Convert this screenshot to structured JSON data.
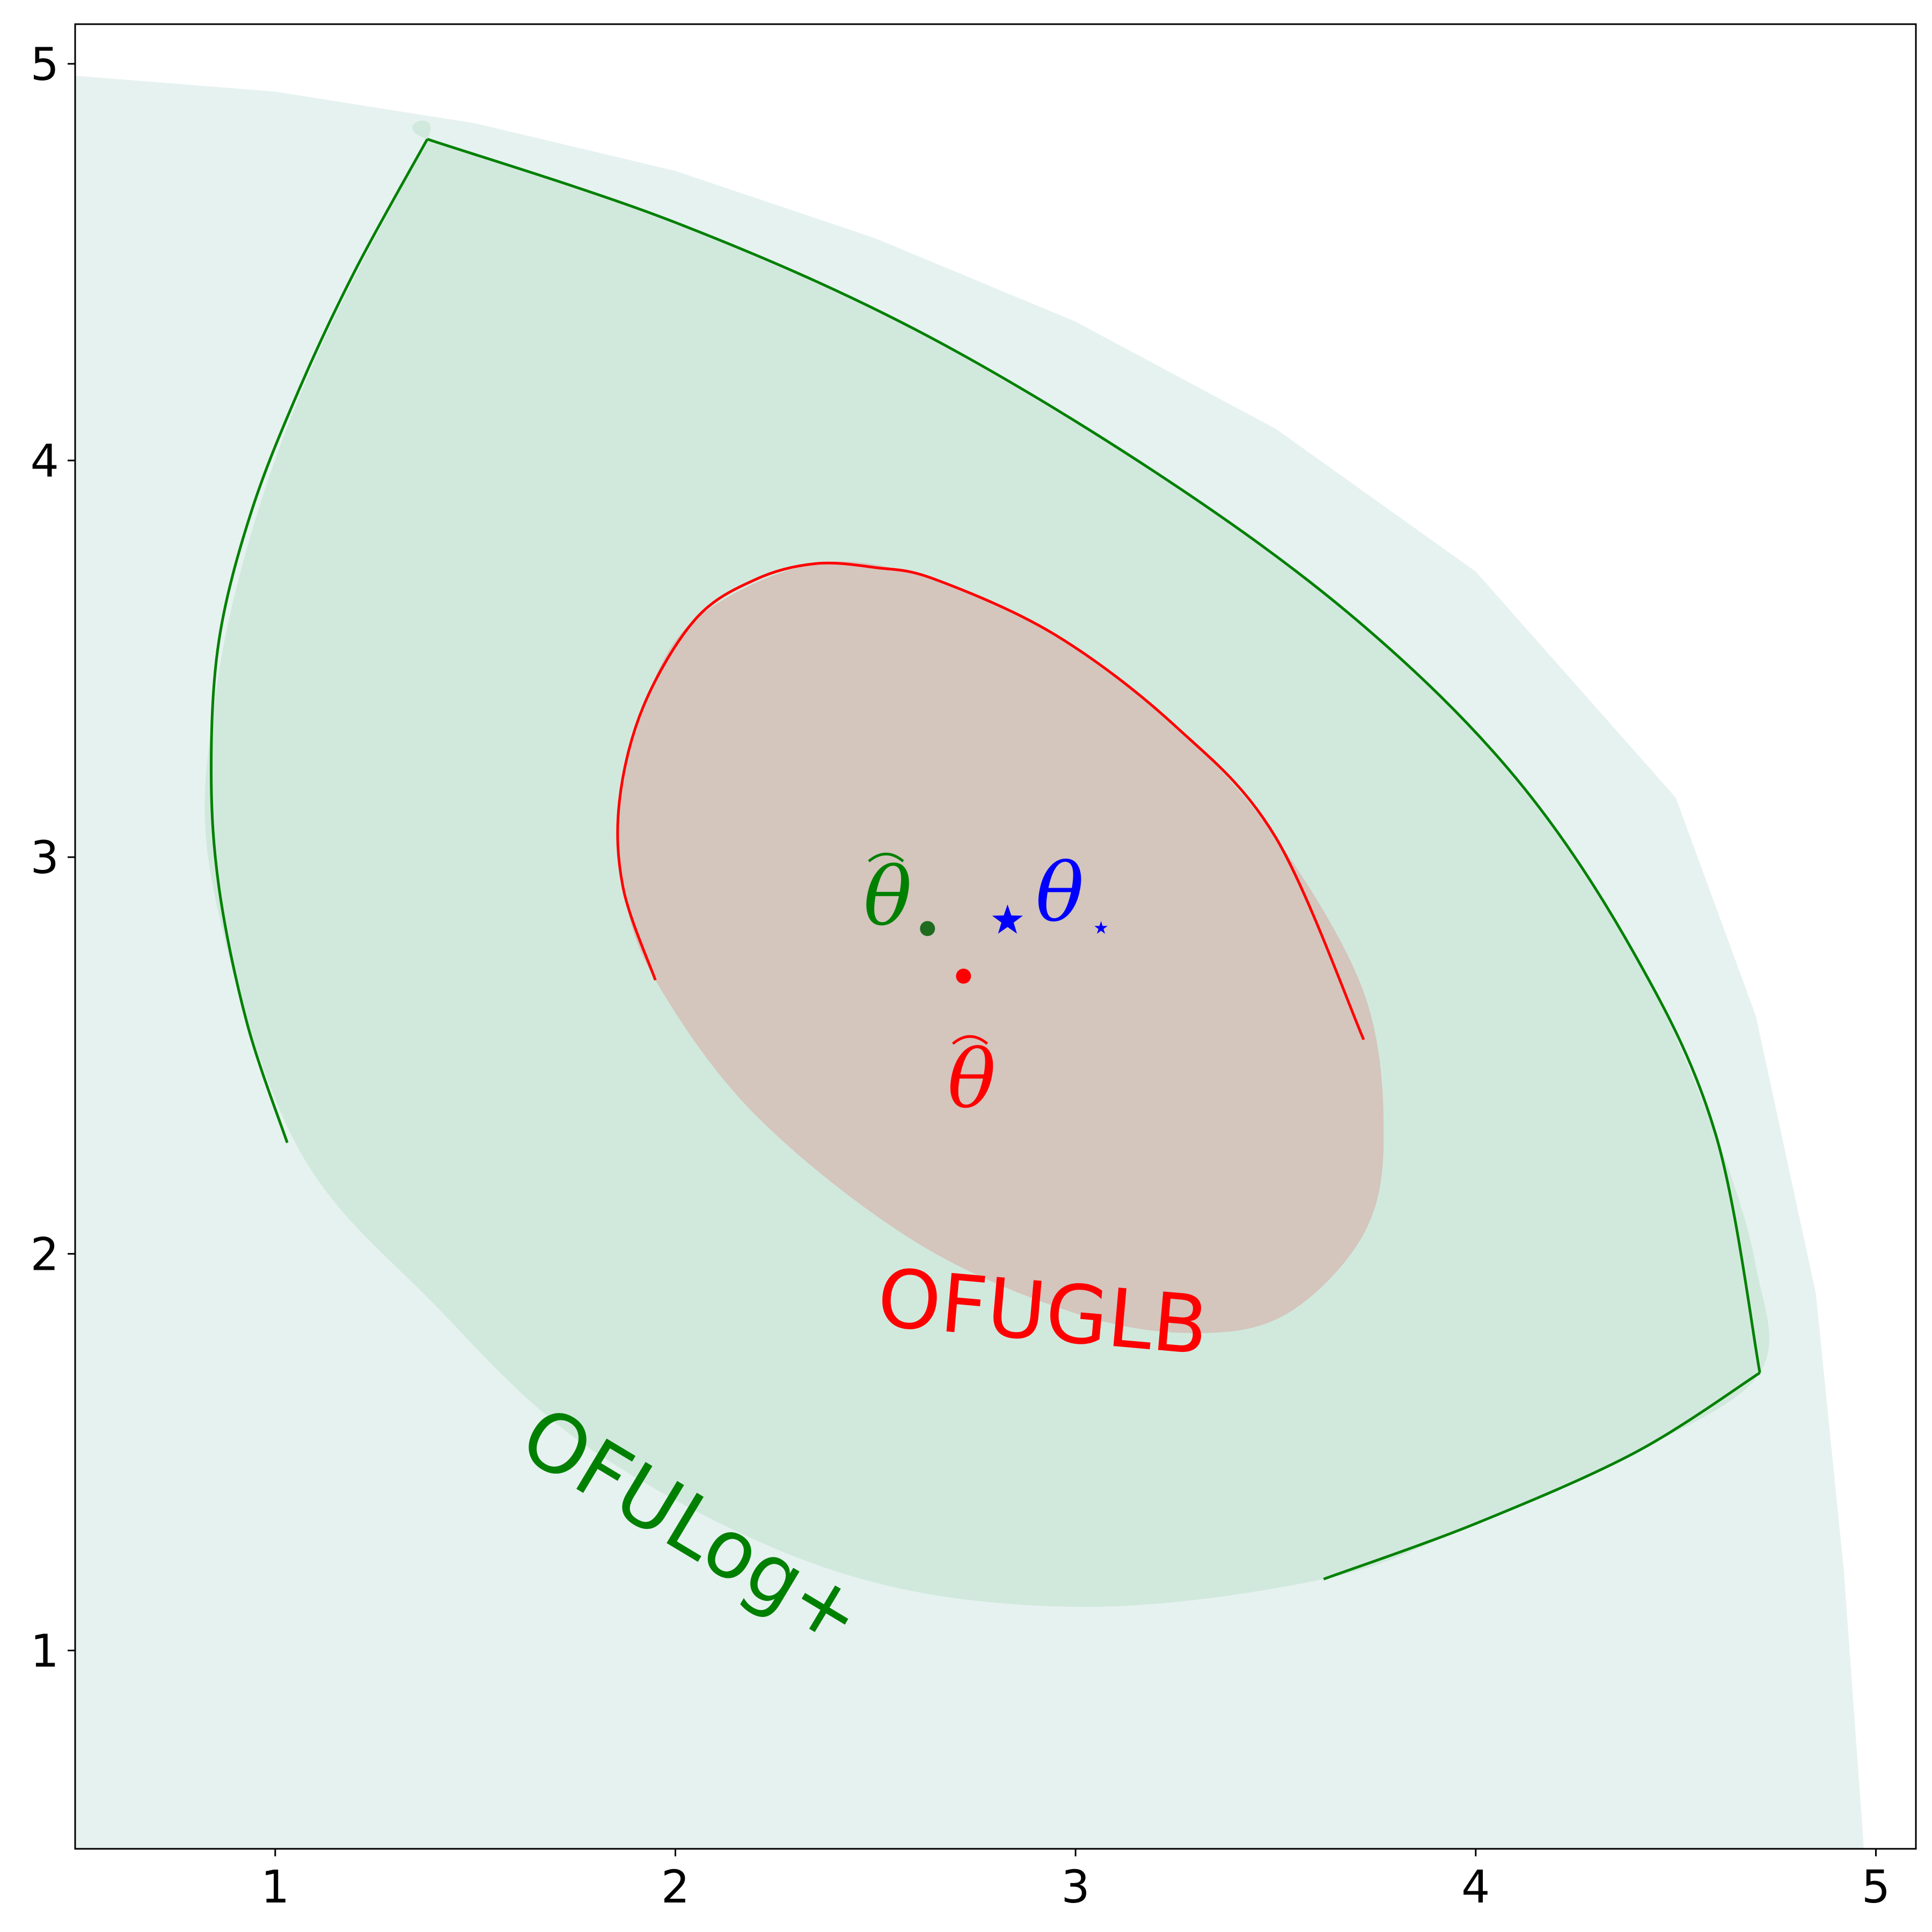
{
  "chart_data": {
    "type": "scatter",
    "xlim": [
      0.5,
      5.1
    ],
    "ylim": [
      0.5,
      5.1
    ],
    "x_ticks": [
      "1",
      "2",
      "3",
      "4",
      "5"
    ],
    "y_ticks": [
      "1",
      "2",
      "3",
      "4",
      "5"
    ],
    "grid": false,
    "colors": {
      "ofuglb": "#ff0000",
      "ofulog": "#008000",
      "theta_star": "#0000ff",
      "outer_fill": "#e6f2f0",
      "ofulog_fill": "#d1e9dd",
      "ofuglb_fill": "#d4c5bd"
    },
    "regions": {
      "outer": {
        "outline": [
          [
            0.5,
            4.97
          ],
          [
            1.0,
            4.93
          ],
          [
            1.5,
            4.85
          ],
          [
            2.0,
            4.73
          ],
          [
            2.5,
            4.56
          ],
          [
            3.0,
            4.35
          ],
          [
            3.5,
            4.08
          ],
          [
            4.0,
            3.72
          ],
          [
            4.5,
            3.15
          ],
          [
            4.7,
            2.6
          ],
          [
            4.85,
            1.9
          ],
          [
            4.92,
            1.2
          ],
          [
            4.97,
            0.5
          ],
          [
            0.5,
            0.5
          ]
        ]
      },
      "ofulog_plus": {
        "label": "OFULog+",
        "outline": [
          [
            1.38,
            4.81
          ],
          [
            2.0,
            4.6
          ],
          [
            2.6,
            4.33
          ],
          [
            3.2,
            3.97
          ],
          [
            3.7,
            3.6
          ],
          [
            4.1,
            3.2
          ],
          [
            4.4,
            2.75
          ],
          [
            4.6,
            2.3
          ],
          [
            4.7,
            1.97
          ],
          [
            4.71,
            1.7
          ],
          [
            4.4,
            1.5
          ],
          [
            4.0,
            1.32
          ],
          [
            3.62,
            1.18
          ],
          [
            3.0,
            1.11
          ],
          [
            2.4,
            1.2
          ],
          [
            1.8,
            1.5
          ],
          [
            1.4,
            1.87
          ],
          [
            1.05,
            2.28
          ],
          [
            0.84,
            2.95
          ],
          [
            0.85,
            3.4
          ],
          [
            0.95,
            3.85
          ],
          [
            1.12,
            4.3
          ],
          [
            1.38,
            4.81
          ]
        ],
        "boundary_segments": [
          [
            [
              1.03,
              2.28
            ],
            [
              0.93,
              2.58
            ],
            [
              0.86,
              2.92
            ],
            [
              0.84,
              3.22
            ],
            [
              0.86,
              3.55
            ],
            [
              0.94,
              3.87
            ],
            [
              1.06,
              4.18
            ],
            [
              1.2,
              4.48
            ],
            [
              1.38,
              4.81
            ]
          ],
          [
            [
              1.38,
              4.81
            ],
            [
              2.0,
              4.6
            ],
            [
              2.6,
              4.33
            ],
            [
              3.2,
              3.97
            ],
            [
              3.7,
              3.6
            ],
            [
              4.1,
              3.2
            ],
            [
              4.4,
              2.75
            ],
            [
              4.6,
              2.3
            ],
            [
              4.71,
              1.7
            ]
          ],
          [
            [
              4.71,
              1.7
            ],
            [
              4.4,
              1.5
            ],
            [
              4.0,
              1.32
            ],
            [
              3.62,
              1.18
            ]
          ]
        ]
      },
      "ofuglb": {
        "label": "OFUGLB",
        "outline": [
          [
            1.95,
            2.69
          ],
          [
            1.87,
            2.92
          ],
          [
            1.86,
            3.14
          ],
          [
            1.92,
            3.38
          ],
          [
            2.05,
            3.6
          ],
          [
            2.35,
            3.74
          ],
          [
            2.65,
            3.7
          ],
          [
            2.95,
            3.56
          ],
          [
            3.25,
            3.33
          ],
          [
            3.5,
            3.05
          ],
          [
            3.72,
            2.66
          ],
          [
            3.77,
            2.3
          ],
          [
            3.72,
            2.05
          ],
          [
            3.53,
            1.85
          ],
          [
            3.3,
            1.8
          ],
          [
            3.0,
            1.85
          ],
          [
            2.6,
            2.03
          ],
          [
            2.2,
            2.35
          ]
        ],
        "boundary_segments": [
          [
            [
              1.95,
              2.69
            ],
            [
              1.87,
              2.92
            ],
            [
              1.86,
              3.14
            ],
            [
              1.92,
              3.38
            ],
            [
              2.05,
              3.6
            ],
            [
              2.2,
              3.7
            ],
            [
              2.35,
              3.74
            ],
            [
              2.5,
              3.73
            ],
            [
              2.65,
              3.7
            ],
            [
              2.95,
              3.56
            ],
            [
              3.25,
              3.33
            ],
            [
              3.5,
              3.05
            ],
            [
              3.72,
              2.54
            ]
          ]
        ]
      }
    },
    "points": [
      {
        "name": "theta_hat_ofulog",
        "x": 2.63,
        "y": 2.82,
        "marker": "dot",
        "color": "#1f6b1f"
      },
      {
        "name": "theta_hat_ofuglb",
        "x": 2.72,
        "y": 2.7,
        "marker": "dot",
        "color": "#ff0000"
      },
      {
        "name": "theta_star",
        "x": 2.83,
        "y": 2.84,
        "marker": "star",
        "color": "#0000ff"
      }
    ],
    "annotations": [
      {
        "text": "OFUGLB",
        "x": 2.5,
        "y": 1.82,
        "color": "#ff0000",
        "rotate": 5
      },
      {
        "text": "OFULog+",
        "x": 1.6,
        "y": 1.5,
        "color": "#008000",
        "rotate": 31
      },
      {
        "text": "θ",
        "x": 2.47,
        "y": 2.83,
        "color": "#008000",
        "hat": true
      },
      {
        "text": "θ",
        "x": 2.68,
        "y": 2.37,
        "color": "#ff0000",
        "hat": true
      },
      {
        "text": "θ",
        "x": 2.9,
        "y": 2.84,
        "color": "#0000ff",
        "subscript_star": true
      }
    ]
  }
}
